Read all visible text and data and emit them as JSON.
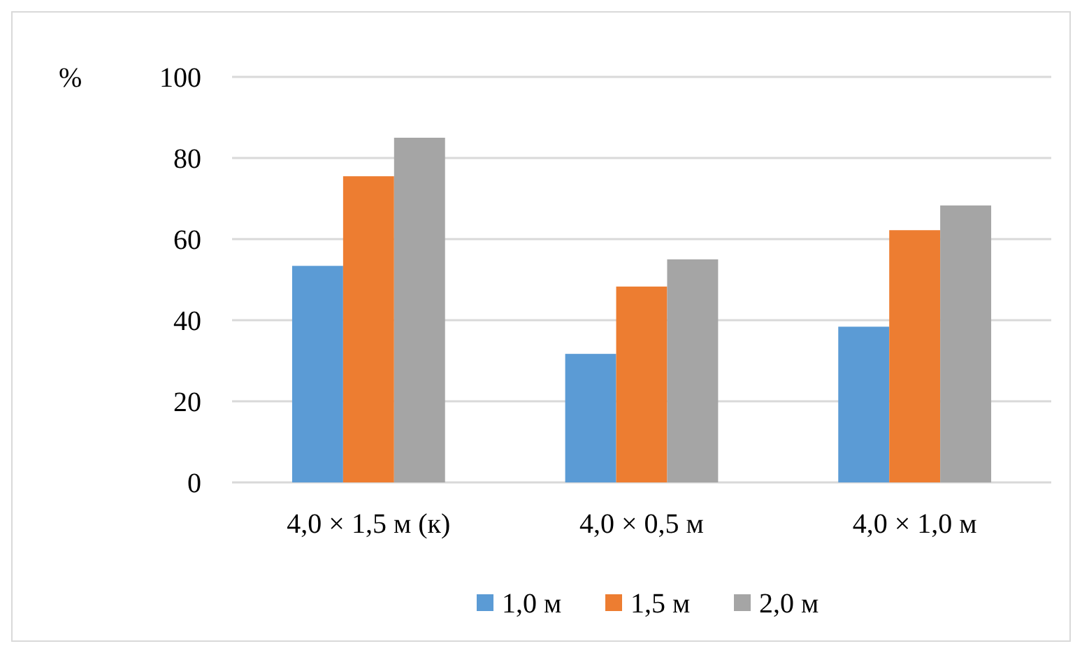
{
  "chart_data": {
    "type": "bar",
    "ylabel": "%",
    "categories": [
      "4,0 × 1,5 м (к)",
      "4,0 × 0,5 м",
      "4,0 × 1,0 м"
    ],
    "series": [
      {
        "name": "1,0 м",
        "color": "#5b9bd5",
        "values": [
          53.4,
          31.7,
          38.4
        ]
      },
      {
        "name": "1,5 м",
        "color": "#ed7d31",
        "values": [
          75.5,
          48.3,
          62.2
        ]
      },
      {
        "name": "2,0 м",
        "color": "#a5a5a5",
        "values": [
          85,
          55,
          68.3
        ]
      }
    ],
    "ylim": [
      0,
      100
    ],
    "yticks": [
      0,
      20,
      40,
      60,
      80,
      100
    ],
    "grid": "y",
    "legend": "bottom"
  }
}
